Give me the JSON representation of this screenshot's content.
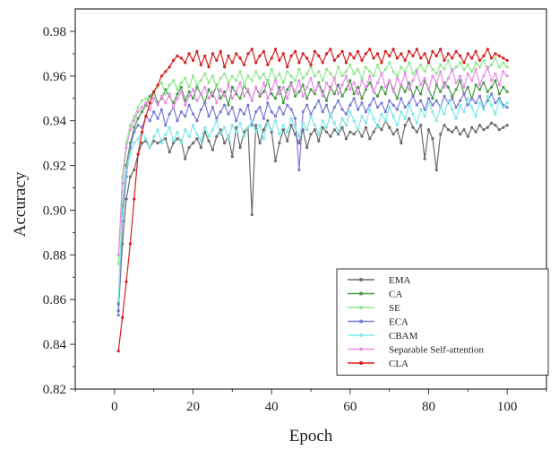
{
  "chart_data": {
    "type": "line",
    "title": "",
    "xlabel": "Epoch",
    "ylabel": "Accuracy",
    "xlim": [
      -10,
      110
    ],
    "ylim": [
      0.82,
      0.99
    ],
    "xticks": [
      0,
      20,
      40,
      60,
      80,
      100
    ],
    "xtick_labels": [
      "0",
      "20",
      "40",
      "60",
      "80",
      "100"
    ],
    "yticks": [
      0.82,
      0.84,
      0.86,
      0.88,
      0.9,
      0.92,
      0.94,
      0.96,
      0.98
    ],
    "ytick_labels": [
      "0.82",
      "0.84",
      "0.86",
      "0.88",
      "0.90",
      "0.92",
      "0.94",
      "0.96",
      "0.98"
    ],
    "grid": false,
    "legend_position": "bottom-right",
    "x": [
      1,
      2,
      3,
      4,
      5,
      6,
      7,
      8,
      9,
      10,
      11,
      12,
      13,
      14,
      15,
      16,
      17,
      18,
      19,
      20,
      21,
      22,
      23,
      24,
      25,
      26,
      27,
      28,
      29,
      30,
      31,
      32,
      33,
      34,
      35,
      36,
      37,
      38,
      39,
      40,
      41,
      42,
      43,
      44,
      45,
      46,
      47,
      48,
      49,
      50,
      51,
      52,
      53,
      54,
      55,
      56,
      57,
      58,
      59,
      60,
      61,
      62,
      63,
      64,
      65,
      66,
      67,
      68,
      69,
      70,
      71,
      72,
      73,
      74,
      75,
      76,
      77,
      78,
      79,
      80,
      81,
      82,
      83,
      84,
      85,
      86,
      87,
      88,
      89,
      90,
      91,
      92,
      93,
      94,
      95,
      96,
      97,
      98,
      99,
      100
    ],
    "series": [
      {
        "name": "EMA",
        "color": "#6b6b6b",
        "values": [
          0.855,
          0.885,
          0.905,
          0.915,
          0.918,
          0.925,
          0.93,
          0.931,
          0.928,
          0.931,
          0.93,
          0.931,
          0.932,
          0.926,
          0.93,
          0.932,
          0.931,
          0.923,
          0.928,
          0.93,
          0.932,
          0.928,
          0.935,
          0.931,
          0.927,
          0.933,
          0.936,
          0.93,
          0.933,
          0.924,
          0.937,
          0.928,
          0.935,
          0.937,
          0.898,
          0.938,
          0.93,
          0.936,
          0.94,
          0.935,
          0.922,
          0.93,
          0.936,
          0.931,
          0.938,
          0.934,
          0.93,
          0.936,
          0.928,
          0.934,
          0.936,
          0.931,
          0.937,
          0.935,
          0.933,
          0.936,
          0.934,
          0.937,
          0.932,
          0.935,
          0.934,
          0.936,
          0.933,
          0.937,
          0.932,
          0.935,
          0.938,
          0.936,
          0.94,
          0.937,
          0.934,
          0.936,
          0.93,
          0.938,
          0.941,
          0.937,
          0.935,
          0.938,
          0.923,
          0.936,
          0.932,
          0.918,
          0.934,
          0.938,
          0.936,
          0.935,
          0.937,
          0.934,
          0.936,
          0.933,
          0.937,
          0.935,
          0.938,
          0.936,
          0.937,
          0.939,
          0.938,
          0.936,
          0.937,
          0.938
        ]
      },
      {
        "name": "CA",
        "color": "#4a9a4a",
        "values": [
          0.858,
          0.902,
          0.92,
          0.93,
          0.937,
          0.941,
          0.944,
          0.947,
          0.951,
          0.953,
          0.948,
          0.95,
          0.954,
          0.951,
          0.948,
          0.952,
          0.955,
          0.949,
          0.953,
          0.95,
          0.955,
          0.952,
          0.948,
          0.954,
          0.951,
          0.956,
          0.95,
          0.953,
          0.947,
          0.955,
          0.952,
          0.95,
          0.956,
          0.953,
          0.949,
          0.955,
          0.951,
          0.953,
          0.958,
          0.952,
          0.95,
          0.955,
          0.948,
          0.954,
          0.957,
          0.951,
          0.953,
          0.956,
          0.95,
          0.954,
          0.952,
          0.957,
          0.953,
          0.949,
          0.955,
          0.952,
          0.956,
          0.951,
          0.954,
          0.958,
          0.952,
          0.955,
          0.95,
          0.954,
          0.957,
          0.953,
          0.951,
          0.955,
          0.952,
          0.958,
          0.954,
          0.95,
          0.956,
          0.953,
          0.957,
          0.951,
          0.955,
          0.952,
          0.958,
          0.954,
          0.95,
          0.956,
          0.953,
          0.957,
          0.955,
          0.951,
          0.954,
          0.958,
          0.952,
          0.955,
          0.95,
          0.956,
          0.954,
          0.957,
          0.953,
          0.955,
          0.958,
          0.952,
          0.955,
          0.953
        ]
      },
      {
        "name": "SE",
        "color": "#8fe88f",
        "values": [
          0.876,
          0.915,
          0.93,
          0.938,
          0.942,
          0.946,
          0.949,
          0.95,
          0.948,
          0.953,
          0.955,
          0.957,
          0.952,
          0.956,
          0.958,
          0.954,
          0.957,
          0.959,
          0.955,
          0.96,
          0.956,
          0.958,
          0.961,
          0.957,
          0.96,
          0.955,
          0.959,
          0.961,
          0.957,
          0.96,
          0.958,
          0.962,
          0.956,
          0.96,
          0.958,
          0.962,
          0.959,
          0.961,
          0.957,
          0.963,
          0.959,
          0.961,
          0.957,
          0.962,
          0.96,
          0.958,
          0.963,
          0.959,
          0.961,
          0.964,
          0.96,
          0.962,
          0.958,
          0.963,
          0.961,
          0.959,
          0.964,
          0.96,
          0.962,
          0.965,
          0.961,
          0.963,
          0.959,
          0.964,
          0.962,
          0.96,
          0.965,
          0.961,
          0.963,
          0.966,
          0.962,
          0.96,
          0.964,
          0.962,
          0.966,
          0.961,
          0.963,
          0.965,
          0.962,
          0.966,
          0.963,
          0.961,
          0.965,
          0.963,
          0.967,
          0.962,
          0.964,
          0.966,
          0.963,
          0.965,
          0.962,
          0.966,
          0.964,
          0.967,
          0.963,
          0.965,
          0.968,
          0.964,
          0.966,
          0.964
        ]
      },
      {
        "name": "ECA",
        "color": "#7b7bd6",
        "values": [
          0.853,
          0.895,
          0.915,
          0.928,
          0.935,
          0.938,
          0.937,
          0.942,
          0.94,
          0.944,
          0.941,
          0.945,
          0.938,
          0.943,
          0.946,
          0.94,
          0.944,
          0.942,
          0.947,
          0.943,
          0.94,
          0.945,
          0.948,
          0.942,
          0.946,
          0.941,
          0.944,
          0.947,
          0.943,
          0.946,
          0.94,
          0.945,
          0.943,
          0.947,
          0.938,
          0.944,
          0.946,
          0.941,
          0.948,
          0.944,
          0.942,
          0.946,
          0.943,
          0.947,
          0.945,
          0.941,
          0.918,
          0.944,
          0.947,
          0.943,
          0.946,
          0.949,
          0.944,
          0.947,
          0.942,
          0.946,
          0.949,
          0.945,
          0.943,
          0.947,
          0.95,
          0.945,
          0.948,
          0.944,
          0.947,
          0.95,
          0.946,
          0.948,
          0.944,
          0.949,
          0.947,
          0.945,
          0.95,
          0.946,
          0.948,
          0.951,
          0.947,
          0.949,
          0.945,
          0.95,
          0.947,
          0.949,
          0.946,
          0.951,
          0.948,
          0.95,
          0.946,
          0.949,
          0.952,
          0.947,
          0.95,
          0.948,
          0.951,
          0.946,
          0.949,
          0.952,
          0.948,
          0.95,
          0.947,
          0.946
        ]
      },
      {
        "name": "CBAM",
        "color": "#7fe8e8",
        "values": [
          0.86,
          0.9,
          0.918,
          0.925,
          0.93,
          0.932,
          0.935,
          0.932,
          0.928,
          0.933,
          0.936,
          0.93,
          0.934,
          0.937,
          0.931,
          0.935,
          0.93,
          0.936,
          0.933,
          0.938,
          0.934,
          0.931,
          0.937,
          0.933,
          0.936,
          0.94,
          0.934,
          0.937,
          0.932,
          0.938,
          0.935,
          0.939,
          0.933,
          0.937,
          0.94,
          0.935,
          0.938,
          0.932,
          0.939,
          0.936,
          0.94,
          0.934,
          0.938,
          0.935,
          0.941,
          0.937,
          0.933,
          0.939,
          0.936,
          0.942,
          0.938,
          0.934,
          0.94,
          0.937,
          0.943,
          0.939,
          0.935,
          0.941,
          0.938,
          0.944,
          0.94,
          0.936,
          0.942,
          0.939,
          0.945,
          0.941,
          0.937,
          0.943,
          0.94,
          0.946,
          0.942,
          0.938,
          0.944,
          0.941,
          0.947,
          0.943,
          0.939,
          0.945,
          0.942,
          0.948,
          0.944,
          0.94,
          0.946,
          0.943,
          0.949,
          0.945,
          0.941,
          0.947,
          0.944,
          0.95,
          0.946,
          0.942,
          0.948,
          0.945,
          0.951,
          0.947,
          0.943,
          0.949,
          0.946,
          0.948
        ]
      },
      {
        "name": "Separable Self-attention",
        "color": "#e88fe8",
        "values": [
          0.88,
          0.912,
          0.928,
          0.936,
          0.94,
          0.944,
          0.946,
          0.948,
          0.945,
          0.95,
          0.947,
          0.951,
          0.948,
          0.952,
          0.946,
          0.95,
          0.953,
          0.947,
          0.951,
          0.954,
          0.949,
          0.952,
          0.955,
          0.95,
          0.953,
          0.948,
          0.954,
          0.951,
          0.956,
          0.95,
          0.953,
          0.957,
          0.951,
          0.954,
          0.949,
          0.955,
          0.952,
          0.957,
          0.95,
          0.954,
          0.958,
          0.952,
          0.955,
          0.95,
          0.956,
          0.953,
          0.958,
          0.951,
          0.955,
          0.959,
          0.953,
          0.956,
          0.951,
          0.957,
          0.954,
          0.959,
          0.952,
          0.956,
          0.96,
          0.954,
          0.957,
          0.952,
          0.958,
          0.955,
          0.96,
          0.953,
          0.957,
          0.961,
          0.955,
          0.958,
          0.953,
          0.959,
          0.956,
          0.961,
          0.954,
          0.958,
          0.962,
          0.956,
          0.959,
          0.954,
          0.96,
          0.957,
          0.962,
          0.955,
          0.959,
          0.963,
          0.957,
          0.96,
          0.955,
          0.961,
          0.958,
          0.963,
          0.956,
          0.96,
          0.964,
          0.958,
          0.961,
          0.956,
          0.962,
          0.96
        ]
      },
      {
        "name": "CLA",
        "color": "#d61f1f",
        "values": [
          0.837,
          0.852,
          0.868,
          0.885,
          0.905,
          0.925,
          0.935,
          0.942,
          0.948,
          0.953,
          0.956,
          0.96,
          0.962,
          0.964,
          0.967,
          0.969,
          0.968,
          0.966,
          0.97,
          0.967,
          0.971,
          0.965,
          0.969,
          0.964,
          0.97,
          0.967,
          0.971,
          0.964,
          0.969,
          0.966,
          0.97,
          0.968,
          0.965,
          0.97,
          0.972,
          0.966,
          0.969,
          0.971,
          0.965,
          0.968,
          0.972,
          0.967,
          0.97,
          0.964,
          0.969,
          0.971,
          0.966,
          0.97,
          0.968,
          0.965,
          0.971,
          0.969,
          0.966,
          0.97,
          0.972,
          0.967,
          0.969,
          0.971,
          0.966,
          0.97,
          0.968,
          0.971,
          0.967,
          0.97,
          0.972,
          0.968,
          0.97,
          0.966,
          0.971,
          0.969,
          0.972,
          0.968,
          0.97,
          0.967,
          0.971,
          0.969,
          0.972,
          0.968,
          0.97,
          0.966,
          0.971,
          0.969,
          0.972,
          0.967,
          0.97,
          0.968,
          0.971,
          0.969,
          0.966,
          0.97,
          0.968,
          0.971,
          0.967,
          0.969,
          0.972,
          0.968,
          0.97,
          0.969,
          0.968,
          0.967
        ]
      }
    ]
  }
}
